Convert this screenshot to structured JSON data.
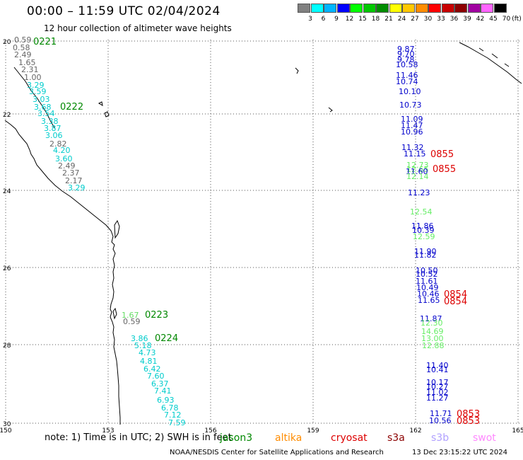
{
  "header": {
    "title": "00:00 – 11:59 UTC 02/04/2024",
    "subtitle": "12 hour collection of altimeter wave heights"
  },
  "legend": {
    "unit": "(ft)",
    "bins": [
      {
        "label": "3",
        "color": "#808080"
      },
      {
        "label": "6",
        "color": "#00ffff"
      },
      {
        "label": "9",
        "color": "#00b4ff"
      },
      {
        "label": "12",
        "color": "#0000ff"
      },
      {
        "label": "15",
        "color": "#00ff00"
      },
      {
        "label": "18",
        "color": "#00c800"
      },
      {
        "label": "21",
        "color": "#008c00"
      },
      {
        "label": "24",
        "color": "#ffff00"
      },
      {
        "label": "27",
        "color": "#ffc800"
      },
      {
        "label": "30",
        "color": "#ff8c00"
      },
      {
        "label": "33",
        "color": "#ff0000"
      },
      {
        "label": "36",
        "color": "#c80000"
      },
      {
        "label": "39",
        "color": "#8c0000"
      },
      {
        "label": "42",
        "color": "#a000a0"
      },
      {
        "label": "45",
        "color": "#ff64ff"
      },
      {
        "label": "70",
        "color": "#000000"
      }
    ]
  },
  "axes": {
    "lon_labels": [
      "150",
      "153",
      "156",
      "159",
      "162",
      "165"
    ],
    "lat_labels": [
      "-20",
      "-22",
      "-24",
      "-26",
      "-28",
      "-30"
    ]
  },
  "track_jason3": {
    "color_mid": "#00cccc",
    "color_low": "#666666",
    "color_green": "#66dd66",
    "times": [
      "0221",
      "0222",
      "0223",
      "0224"
    ],
    "time_color": "#008800",
    "values_north": [
      "0.59",
      "0.58",
      "2.49",
      "1.65",
      "2.31",
      "1.00",
      "3.29",
      "3.59",
      "3.03",
      "3.68",
      "3.54",
      "3.38",
      "3.87",
      "3.06",
      "2.82",
      "4.20",
      "3.60",
      "2.49",
      "2.37",
      "2.17",
      "3.29"
    ],
    "values_south": [
      "1.67",
      "0.59",
      "3.86",
      "5.18",
      "4.73",
      "4.81",
      "6.42",
      "7.60",
      "6.37",
      "7.41",
      "6.93",
      "6.78",
      "7.12",
      "7.59"
    ]
  },
  "track_cryosat": {
    "times": [
      "0855",
      "0855",
      "0854",
      "0854",
      "0853",
      "0853"
    ],
    "time_color": "#dd0000",
    "values": [
      "9.87",
      "9.70",
      "9.78",
      "10.58",
      "11.46",
      "10.74",
      "10.10",
      "10.73",
      "11.09",
      "11.47",
      "10.96",
      "11.32",
      "11.15",
      "12.73",
      "12.65",
      "11.60",
      "12.14",
      "11.23",
      "12.54",
      "11.86",
      "10.39",
      "12.59",
      "11.90",
      "11.82",
      "10.50",
      "10.52",
      "11.61",
      "10.49",
      "10.46",
      "11.65",
      "11.87",
      "12.30",
      "14.69",
      "13.00",
      "12.88",
      "11.40",
      "10.41",
      "10.17",
      "10.27",
      "11.02",
      "11.27",
      "11.71",
      "10.56"
    ]
  },
  "footer": {
    "note": "note:  1) Time is in UTC; 2) SWH is in feet",
    "satellites": [
      {
        "name": "jason3",
        "color": "#008800"
      },
      {
        "name": "altika",
        "color": "#ff8c00"
      },
      {
        "name": "cryosat",
        "color": "#dd0000"
      },
      {
        "name": "s3a",
        "color": "#8b0000"
      },
      {
        "name": "s3b",
        "color": "#b0a0ff"
      },
      {
        "name": "swot",
        "color": "#ff88ff"
      }
    ],
    "credit": "NOAA/NESDIS Center for Satellite Applications and Research",
    "timestamp": "13 Dec 23:15:22 UTC 2024"
  }
}
